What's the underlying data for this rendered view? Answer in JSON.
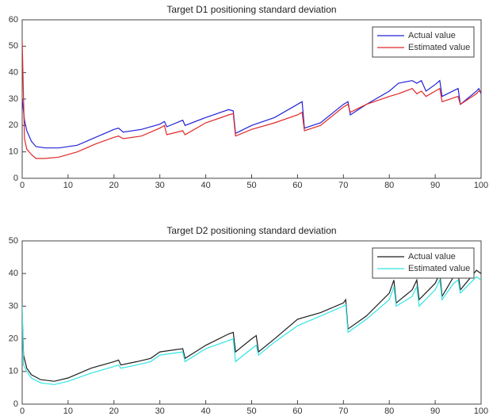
{
  "chart_data": [
    {
      "type": "line",
      "title": "Target D1 positioning standard deviation",
      "x": [
        0,
        0.5,
        1,
        2,
        3,
        5,
        8,
        12,
        16,
        20,
        21,
        22,
        26,
        30,
        31,
        31.5,
        35,
        35.5,
        40,
        45,
        46,
        46.5,
        50,
        55,
        60,
        61,
        61.5,
        65,
        70,
        71,
        71.5,
        75,
        80,
        82,
        85,
        86,
        87,
        88,
        90,
        91,
        91.5,
        95,
        95.5,
        99,
        99.5,
        100
      ],
      "series": [
        {
          "name": "Actual value",
          "color": "#2323d8",
          "values": [
            30,
            22,
            18,
            14,
            12,
            11.5,
            11.5,
            12.5,
            15.5,
            18.5,
            19,
            17.5,
            18.5,
            20.5,
            21.5,
            19.5,
            22,
            20,
            23,
            26,
            25.5,
            17,
            20,
            23,
            28,
            29,
            19,
            21,
            28,
            29,
            24,
            28,
            33,
            36,
            37,
            36,
            37,
            33,
            35.5,
            37,
            31,
            34,
            28,
            33,
            34,
            32
          ]
        },
        {
          "name": "Estimated value",
          "color": "#e02828",
          "values": [
            52,
            15,
            11,
            9,
            7.5,
            7.5,
            8,
            10,
            13,
            15.5,
            16,
            15,
            16,
            19,
            20,
            16.5,
            18,
            16.5,
            21,
            24,
            24.5,
            16,
            18.5,
            21,
            24,
            25,
            18,
            20,
            27,
            28,
            25,
            28,
            31,
            32,
            34,
            32,
            33,
            31,
            33,
            34,
            29,
            31,
            28,
            32,
            33,
            33
          ]
        }
      ],
      "xlim": [
        0,
        100
      ],
      "xticks": [
        0,
        10,
        20,
        30,
        40,
        50,
        60,
        70,
        80,
        90,
        100
      ],
      "ylim": [
        0,
        60
      ],
      "yticks": [
        0,
        10,
        20,
        30,
        40,
        50,
        60
      ],
      "legend": "northeast"
    },
    {
      "type": "line",
      "title": "Target D2 positioning standard deviation",
      "x": [
        0,
        0.3,
        1,
        2,
        4,
        7,
        10,
        15,
        20,
        21,
        21.5,
        25,
        28,
        29,
        30,
        35,
        35.5,
        40,
        45,
        46,
        46.5,
        50,
        51,
        51.5,
        55,
        60,
        65,
        70,
        70.5,
        71,
        75,
        80,
        81,
        81.5,
        85,
        86,
        86.5,
        90,
        91,
        91.5,
        94,
        95,
        95.5,
        99,
        100
      ],
      "series": [
        {
          "name": "Actual value",
          "color": "#1e1e1e",
          "values": [
            28,
            15,
            11,
            9,
            7.5,
            7,
            8,
            11,
            13,
            13.5,
            12,
            13,
            14,
            15,
            16,
            17,
            14,
            18,
            21.5,
            22,
            16,
            20,
            21,
            16,
            20,
            26,
            28,
            31,
            32,
            23,
            27,
            34,
            38,
            31,
            35,
            38,
            32,
            37,
            40,
            33,
            39,
            40,
            35,
            41,
            40
          ]
        },
        {
          "name": "Estimated value",
          "color": "#33e3e3",
          "values": [
            30,
            12,
            10,
            8,
            6.5,
            6,
            7,
            9.5,
            11.5,
            12,
            11,
            12,
            13,
            14,
            15,
            16,
            13,
            17,
            19.5,
            20,
            13,
            17,
            18,
            15,
            19,
            24,
            27,
            30,
            30.5,
            22,
            26,
            32,
            36,
            30,
            33,
            36,
            30,
            35,
            38,
            32,
            37,
            38,
            34,
            39,
            38
          ]
        }
      ],
      "xlim": [
        0,
        100
      ],
      "xticks": [
        0,
        10,
        20,
        30,
        40,
        50,
        60,
        70,
        80,
        90,
        100
      ],
      "ylim": [
        0,
        50
      ],
      "yticks": [
        0,
        10,
        20,
        30,
        40,
        50
      ],
      "legend": "northeast"
    }
  ]
}
